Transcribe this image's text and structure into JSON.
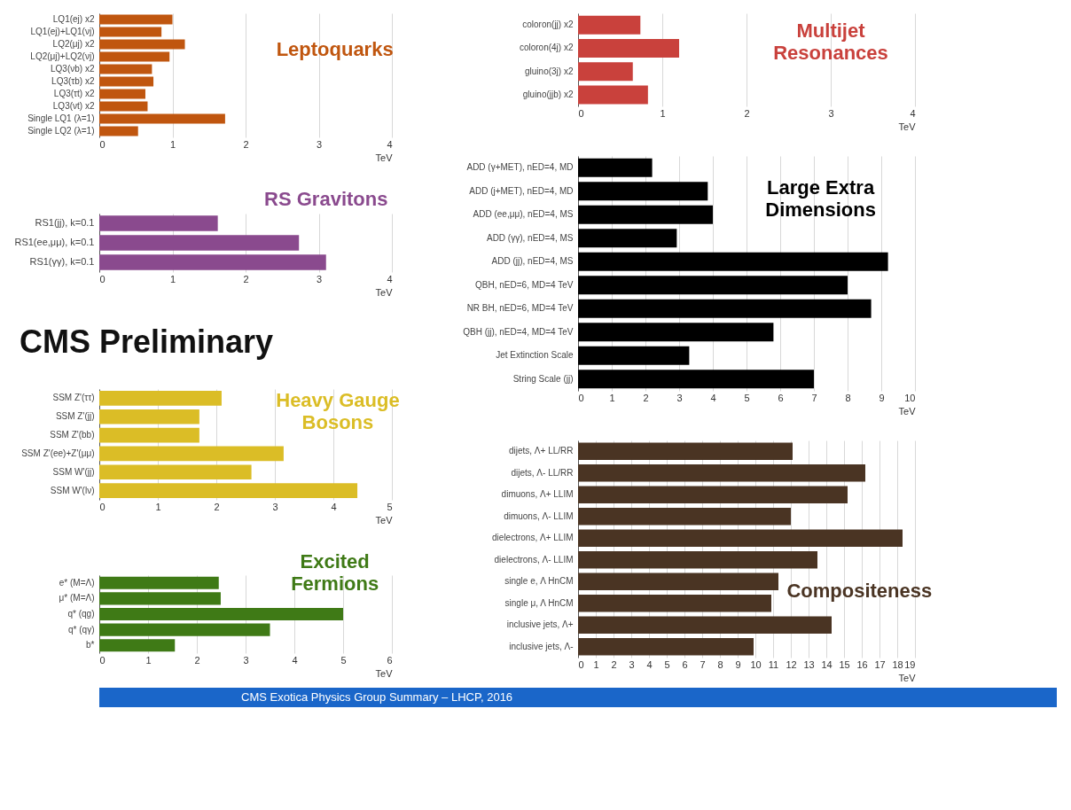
{
  "chart_data": [
    {
      "type": "bar",
      "orientation": "horizontal",
      "title": "Leptoquarks",
      "xlabel": "TeV",
      "color": "#c0560f",
      "grid": "x",
      "xlim": [
        0,
        4
      ],
      "xticks": [
        0,
        1,
        2,
        3,
        4
      ],
      "categories": [
        "LQ1(ej) x2",
        "LQ1(ej)+LQ1(νj)",
        "LQ2(μj) x2",
        "LQ2(μj)+LQ2(νj)",
        "LQ3(νb) x2",
        "LQ3(τb) x2",
        "LQ3(τt) x2",
        "LQ3(νt) x2",
        "Single LQ1 (λ=1)",
        "Single LQ2 (λ=1)"
      ],
      "values": [
        1.0,
        0.85,
        1.17,
        0.96,
        0.72,
        0.74,
        0.63,
        0.66,
        1.72,
        0.53
      ]
    },
    {
      "type": "bar",
      "orientation": "horizontal",
      "title": "Multijet Resonances",
      "xlabel": "TeV",
      "color": "#c9413c",
      "grid": "x",
      "xlim": [
        0,
        4
      ],
      "xticks": [
        0,
        1,
        2,
        3,
        4
      ],
      "categories": [
        "coloron(jj) x2",
        "coloron(4j) x2",
        "gluino(3j) x2",
        "gluino(jjb) x2"
      ],
      "values": [
        0.74,
        1.2,
        0.65,
        0.83
      ]
    },
    {
      "type": "bar",
      "orientation": "horizontal",
      "title": "RS Gravitons",
      "xlabel": "TeV",
      "color": "#8a4a8e",
      "grid": "x",
      "xlim": [
        0,
        4
      ],
      "xticks": [
        0,
        1,
        2,
        3,
        4
      ],
      "categories": [
        "RS1(jj), k=0.1",
        "RS1(ee,μμ), k=0.1",
        "RS1(γγ), k=0.1"
      ],
      "values": [
        1.62,
        2.73,
        3.1
      ]
    },
    {
      "type": "bar",
      "orientation": "horizontal",
      "title": "Large Extra Dimensions",
      "xlabel": "TeV",
      "color": "#000000",
      "grid": "x",
      "xlim": [
        0,
        10
      ],
      "xticks": [
        0,
        1,
        2,
        3,
        4,
        5,
        6,
        7,
        8,
        9,
        10
      ],
      "categories": [
        "ADD (γ+MET), nED=4, MD",
        "ADD (j+MET), nED=4, MD",
        "ADD (ee,μμ), nED=4, MS",
        "ADD (γγ), nED=4, MS",
        "ADD (jj), nED=4, MS",
        "QBH, nED=6, MD=4 TeV",
        "NR BH, nED=6, MD=4 TeV",
        "QBH (jj), nED=4, MD=4 TeV",
        "Jet Extinction Scale",
        "String Scale (jj)"
      ],
      "values": [
        2.2,
        3.85,
        4.0,
        2.93,
        9.2,
        8.0,
        8.7,
        5.8,
        3.3,
        7.0
      ]
    },
    {
      "type": "other",
      "title": "CMS Preliminary",
      "annotations": [
        "CMS Exotica Physics Group Summary – LHCP, 2016"
      ]
    },
    {
      "type": "bar",
      "orientation": "horizontal",
      "title": "Heavy Gauge Bosons",
      "xlabel": "TeV",
      "color": "#dbbd26",
      "grid": "x",
      "xlim": [
        0,
        5
      ],
      "xticks": [
        0,
        1,
        2,
        3,
        4,
        5
      ],
      "categories": [
        "SSM Z'(ττ)",
        "SSM Z'(jj)",
        "SSM Z'(bb)",
        "SSM Z'(ee)+Z'(μμ)",
        "SSM W'(jj)",
        "SSM W'(lν)"
      ],
      "values": [
        2.09,
        1.71,
        1.71,
        3.15,
        2.6,
        4.41
      ]
    },
    {
      "type": "bar",
      "orientation": "horizontal",
      "title": "Compositeness",
      "xlabel": "TeV",
      "color": "#4a3423",
      "grid": "x",
      "xlim": [
        0,
        19
      ],
      "xticks": [
        0,
        1,
        2,
        3,
        4,
        5,
        6,
        7,
        8,
        9,
        10,
        11,
        12,
        13,
        14,
        15,
        16,
        17,
        18,
        19
      ],
      "categories": [
        "dijets, Λ+ LL/RR",
        "dijets, Λ- LL/RR",
        "dimuons, Λ+ LLIM",
        "dimuons, Λ- LLIM",
        "dielectrons, Λ+ LLIM",
        "dielectrons, Λ- LLIM",
        "single e,  Λ HnCM",
        "single μ, Λ HnCM",
        "inclusive jets, Λ+",
        "inclusive jets, Λ-"
      ],
      "values": [
        12.1,
        16.2,
        15.2,
        12.0,
        18.3,
        13.5,
        11.3,
        10.9,
        14.3,
        9.9
      ]
    },
    {
      "type": "bar",
      "orientation": "horizontal",
      "title": "Excited Fermions",
      "xlabel": "TeV",
      "color": "#3f7a16",
      "grid": "x",
      "xlim": [
        0,
        6
      ],
      "xticks": [
        0,
        1,
        2,
        3,
        4,
        5,
        6
      ],
      "categories": [
        "e* (M=Λ)",
        "μ* (M=Λ)",
        "q* (qg)",
        "q* (qγ)",
        "b*"
      ],
      "values": [
        2.45,
        2.49,
        5.0,
        3.5,
        1.55
      ]
    }
  ]
}
